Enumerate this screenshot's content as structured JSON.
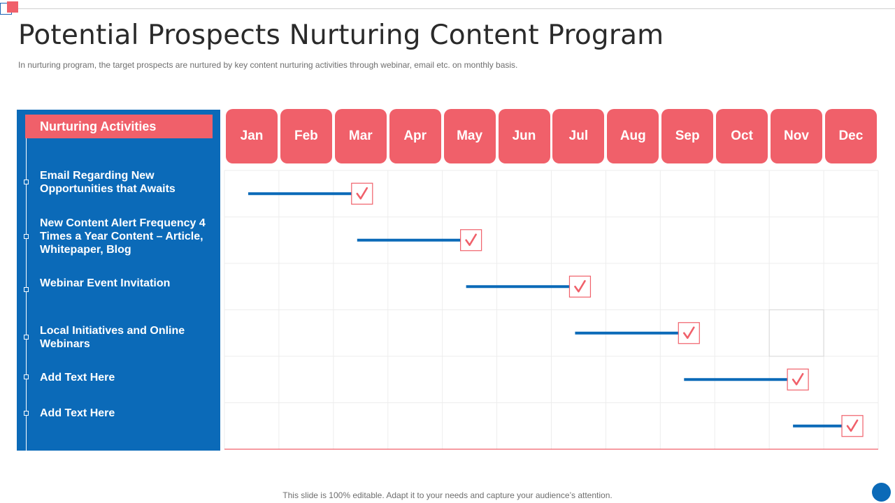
{
  "slide": {
    "title": "Potential Prospects Nurturing Content Program",
    "subtitle": "In nurturing program, the target prospects are nurtured by key content nurturing activities through webinar, email etc. on monthly basis.",
    "footer": "This slide is 100% editable. Adapt it to your needs and capture your audience’s attention."
  },
  "panel": {
    "header": "Nurturing Activities"
  },
  "activities": [
    {
      "label": "Email Regarding New Opportunities that Awaits",
      "start_month": "Jan",
      "end_month": "Mar"
    },
    {
      "label": "New Content  Alert Frequency 4 Times a Year Content – Article, Whitepaper, Blog",
      "start_month": "Mar",
      "end_month": "May"
    },
    {
      "label": "Webinar Event Invitation",
      "start_month": "May",
      "end_month": "Jul"
    },
    {
      "label": "Local Initiatives  and Online Webinars",
      "start_month": "Jul",
      "end_month": "Sep"
    },
    {
      "label": "Add Text Here",
      "start_month": "Sep",
      "end_month": "Nov"
    },
    {
      "label": "Add Text Here",
      "start_month": "Nov",
      "end_month": "Dec"
    }
  ],
  "months": [
    "Jan",
    "Feb",
    "Mar",
    "Apr",
    "May",
    "Jun",
    "Jul",
    "Aug",
    "Sep",
    "Oct",
    "Nov",
    "Dec"
  ],
  "colors": {
    "accent": "#f0606a",
    "brand_blue": "#0b6ab8",
    "grid": "#ededed"
  },
  "icons": {
    "milestone": "check-mark-icon"
  }
}
